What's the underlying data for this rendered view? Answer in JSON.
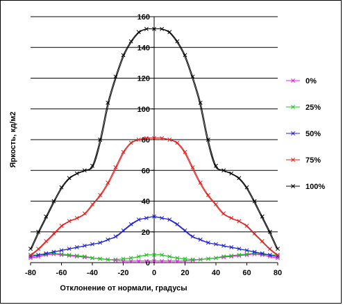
{
  "chart_data": {
    "type": "line",
    "title": "",
    "xlabel": "Отклонение от нормали, градусы",
    "ylabel": "Яркость, кд/м2",
    "xlim": [
      -80,
      80
    ],
    "ylim": [
      0,
      160
    ],
    "x_ticks": [
      -80,
      -60,
      -40,
      -20,
      0,
      20,
      40,
      60,
      80
    ],
    "y_ticks": [
      0,
      20,
      40,
      60,
      80,
      100,
      120,
      140,
      160
    ],
    "x_tick_labels": [
      "-80",
      "-60",
      "-40",
      "-20",
      "0",
      "20",
      "40",
      "60",
      "80"
    ],
    "y_tick_labels": [
      "0",
      "20",
      "40",
      "60",
      "80",
      "100",
      "120",
      "140",
      "160"
    ],
    "grid": "horizontal",
    "legend_position": "right",
    "x": [
      -80,
      -75,
      -70,
      -65,
      -60,
      -55,
      -50,
      -45,
      -40,
      -35,
      -30,
      -25,
      -20,
      -15,
      -10,
      -5,
      0,
      5,
      10,
      15,
      20,
      25,
      30,
      35,
      40,
      45,
      50,
      55,
      60,
      65,
      70,
      75,
      80
    ],
    "series": [
      {
        "name": "0%",
        "color": "#e020e0",
        "values": [
          3,
          4,
          5,
          5.5,
          5,
          4.5,
          4,
          3.5,
          3,
          2.5,
          2,
          1.5,
          1,
          1,
          1,
          1,
          1,
          1,
          1,
          1,
          1,
          1.5,
          2,
          2.5,
          3,
          3.5,
          4,
          4.5,
          5,
          5.5,
          5,
          4,
          3
        ]
      },
      {
        "name": "25%",
        "color": "#20c020",
        "values": [
          5,
          5,
          5.5,
          6,
          5.5,
          5,
          4.5,
          4,
          3,
          2.5,
          2,
          2,
          2.5,
          3,
          4,
          5,
          5,
          5,
          4,
          3,
          2.5,
          2,
          2,
          2.5,
          3,
          4,
          4.5,
          5,
          5.5,
          6,
          5.5,
          5,
          5
        ]
      },
      {
        "name": "50%",
        "color": "#2020d0",
        "values": [
          4,
          5,
          6,
          7,
          8,
          9,
          10,
          11,
          12,
          13,
          15,
          17,
          21,
          25,
          28,
          29,
          30,
          29,
          28,
          25,
          21,
          17,
          15,
          13,
          12,
          11,
          10,
          9,
          8,
          7,
          6,
          5,
          4
        ]
      },
      {
        "name": "75%",
        "color": "#e02020",
        "values": [
          5,
          9,
          14,
          19,
          24,
          27,
          29,
          32,
          38,
          44,
          52,
          62,
          72,
          78,
          80,
          81,
          81,
          81,
          80,
          78,
          72,
          62,
          52,
          44,
          38,
          32,
          29,
          27,
          24,
          19,
          14,
          9,
          5
        ]
      },
      {
        "name": "100%",
        "color": "#000000",
        "values": [
          9,
          20,
          30,
          40,
          49,
          55,
          58,
          60,
          63,
          80,
          104,
          121,
          135,
          144,
          150,
          152,
          152,
          152,
          150,
          144,
          135,
          121,
          104,
          80,
          63,
          60,
          58,
          55,
          49,
          40,
          30,
          20,
          9
        ]
      }
    ]
  }
}
